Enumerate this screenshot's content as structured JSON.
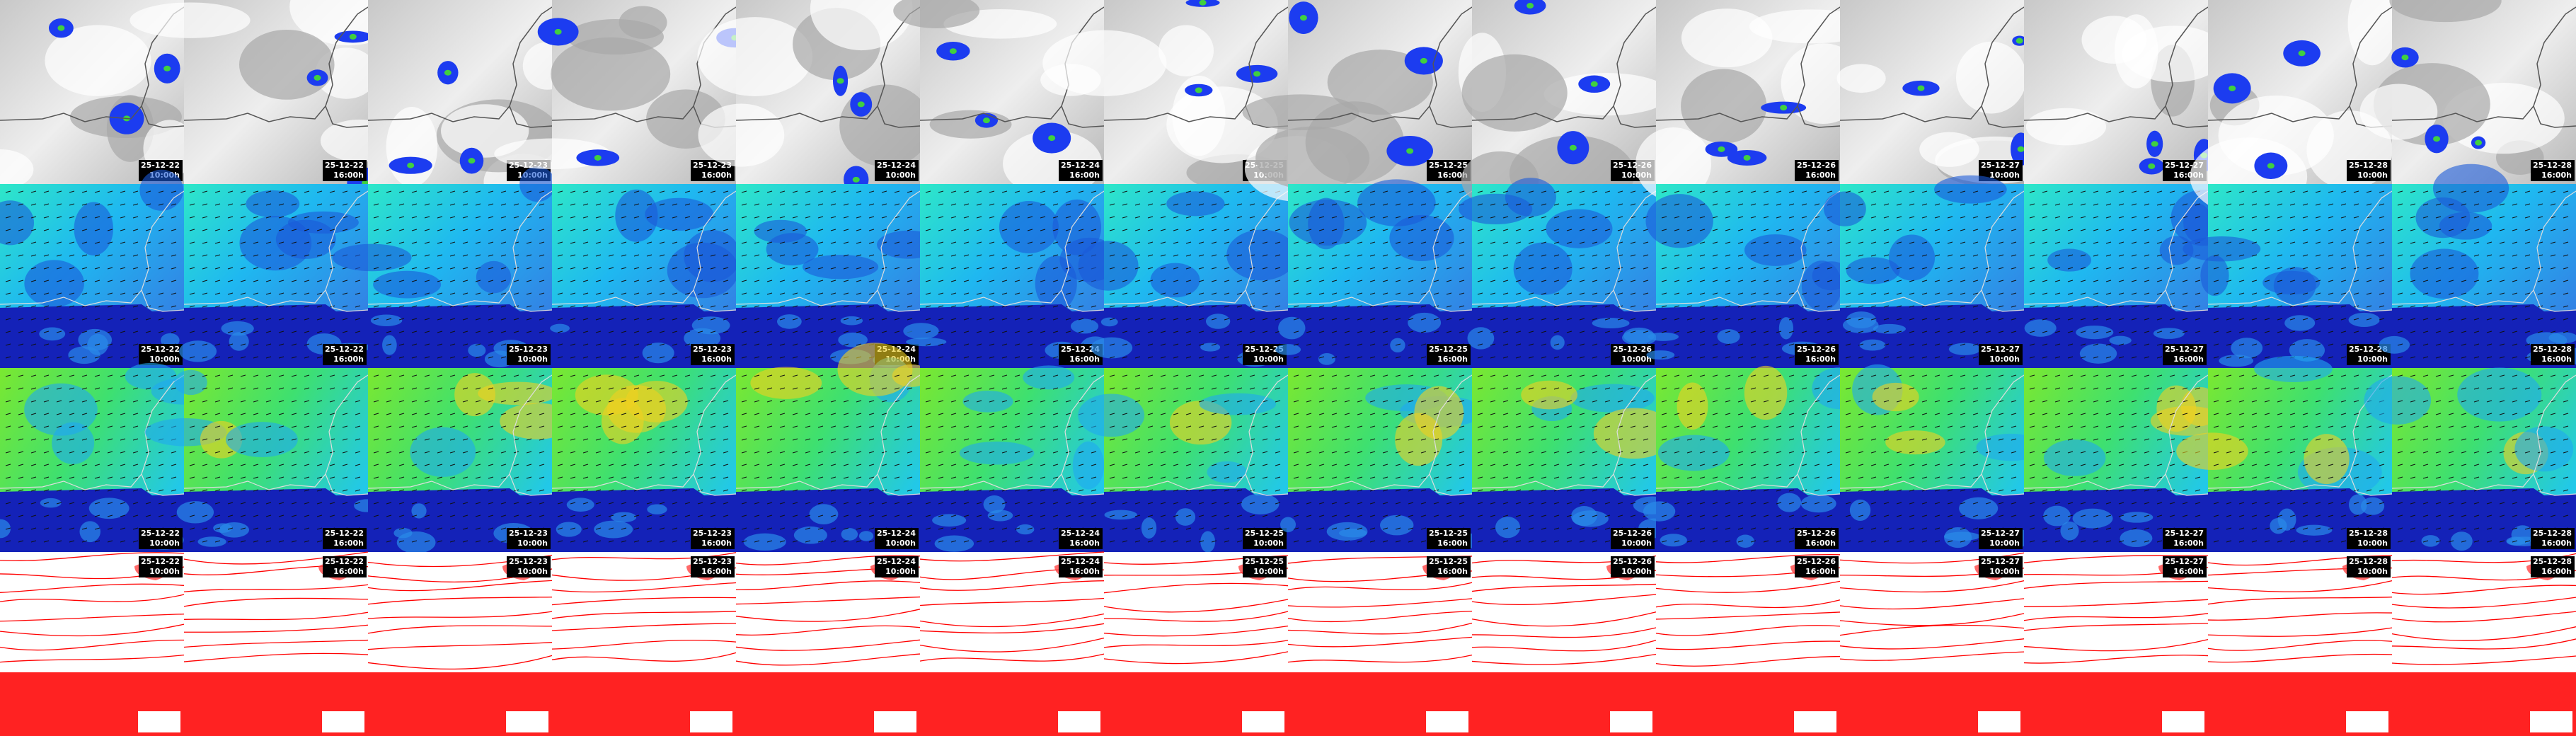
{
  "columns": [
    {
      "date": "25-12-22",
      "time": "10:00h"
    },
    {
      "date": "25-12-22",
      "time": "16:00h"
    },
    {
      "date": "25-12-23",
      "time": "10:00h"
    },
    {
      "date": "25-12-23",
      "time": "16:00h"
    },
    {
      "date": "25-12-24",
      "time": "10:00h"
    },
    {
      "date": "25-12-24",
      "time": "16:00h"
    },
    {
      "date": "25-12-25",
      "time": "10:00h"
    },
    {
      "date": "25-12-25",
      "time": "16:00h"
    },
    {
      "date": "25-12-26",
      "time": "10:00h"
    },
    {
      "date": "25-12-26",
      "time": "16:00h"
    },
    {
      "date": "25-12-27",
      "time": "10:00h"
    },
    {
      "date": "25-12-27",
      "time": "16:00h"
    },
    {
      "date": "25-12-28",
      "time": "10:00h"
    },
    {
      "date": "25-12-28",
      "time": "16:00h"
    }
  ]
}
